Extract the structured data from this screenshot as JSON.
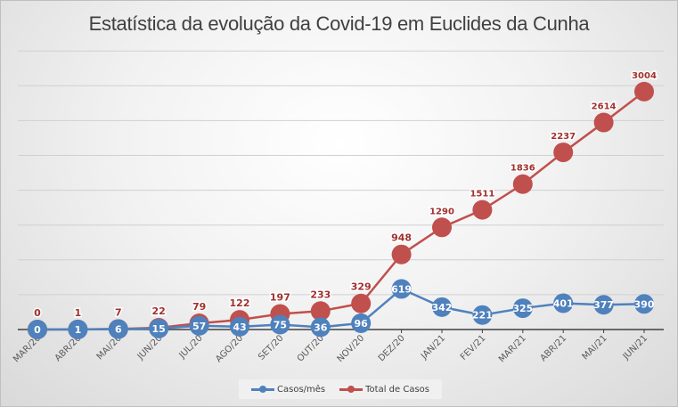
{
  "chart_data": {
    "type": "line",
    "title": "Estatística da evolução da Covid-19 em Euclides da Cunha",
    "categories": [
      "MAR/20",
      "ABR/20",
      "MAI/20",
      "JUN/20",
      "JUL/20",
      "AGO/20",
      "SET/20",
      "OUT/20",
      "NOV/20",
      "DEZ/20",
      "JAN/21",
      "FEV/21",
      "MAR/21",
      "ABR/21",
      "MAI/21",
      "JUN/21"
    ],
    "series": [
      {
        "name": "Casos/mês",
        "color": "#4f81bd",
        "values": [
          0,
          1,
          6,
          15,
          57,
          43,
          75,
          36,
          96,
          619,
          342,
          221,
          325,
          401,
          377,
          390
        ]
      },
      {
        "name": "Total de Casos",
        "color": "#c0504d",
        "values": [
          0,
          1,
          7,
          22,
          79,
          122,
          197,
          233,
          329,
          948,
          1290,
          1511,
          1836,
          2237,
          2614,
          3004
        ]
      }
    ],
    "grid": true,
    "data_labels": true,
    "y_axis_labels_shown": false,
    "legend": "bottom"
  }
}
